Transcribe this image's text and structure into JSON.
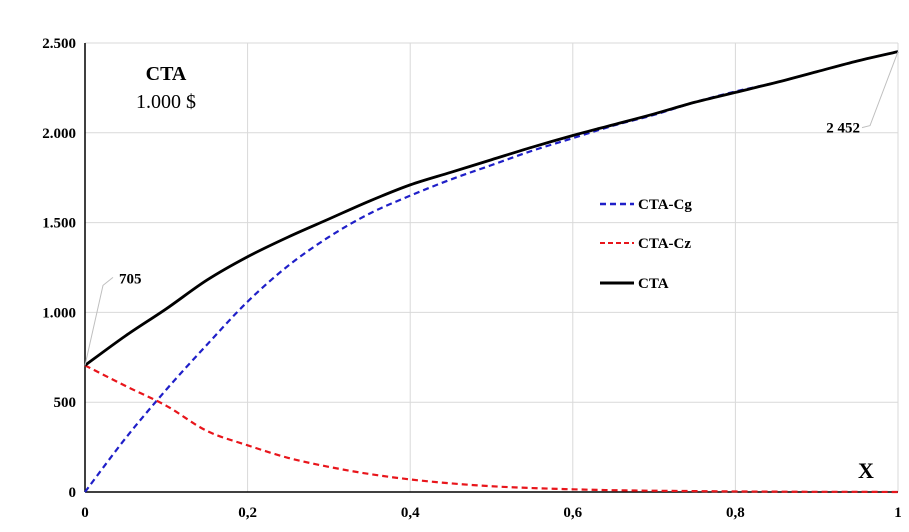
{
  "chart_data": {
    "type": "line",
    "title": "CTA",
    "subtitle": "1.000 $",
    "xlabel": "X",
    "ylabel": "",
    "xlim": [
      0,
      1
    ],
    "ylim": [
      0,
      2500
    ],
    "grid": true,
    "legend_position": "center-right",
    "x_ticks": [
      0,
      0.2,
      0.4,
      0.6,
      0.8,
      1
    ],
    "x_tick_labels": [
      "0",
      "0,2",
      "0,4",
      "0,6",
      "0,8",
      "1"
    ],
    "y_ticks": [
      0,
      500,
      1000,
      1500,
      2000,
      2500
    ],
    "y_tick_labels": [
      "0",
      "500",
      "1.000",
      "1.500",
      "2.000",
      "2.500"
    ],
    "x": [
      0,
      0.05,
      0.1,
      0.15,
      0.2,
      0.25,
      0.3,
      0.35,
      0.4,
      0.45,
      0.5,
      0.55,
      0.6,
      0.65,
      0.7,
      0.75,
      0.8,
      0.85,
      0.9,
      0.95,
      1
    ],
    "series": [
      {
        "name": "CTA-Cg",
        "color": "#1f1fc8",
        "style": "dashed",
        "values": [
          0,
          300,
          570,
          820,
          1060,
          1260,
          1420,
          1550,
          1650,
          1740,
          1820,
          1900,
          1970,
          2040,
          2100,
          2170,
          2230,
          2280,
          2340,
          2400,
          2452
        ]
      },
      {
        "name": "CTA-Cz",
        "color": "#e8151b",
        "style": "dashed",
        "values": [
          705,
          590,
          480,
          340,
          260,
          190,
          140,
          100,
          70,
          48,
          32,
          22,
          15,
          10,
          7,
          5,
          3,
          2,
          1,
          1,
          0
        ]
      },
      {
        "name": "CTA",
        "color": "#000000",
        "style": "solid",
        "values": [
          705,
          870,
          1020,
          1180,
          1310,
          1420,
          1520,
          1620,
          1710,
          1780,
          1850,
          1920,
          1985,
          2045,
          2105,
          2170,
          2225,
          2280,
          2340,
          2400,
          2452
        ]
      }
    ],
    "annotations": [
      {
        "label": "705",
        "x": 0,
        "y": 705
      },
      {
        "label": "2 452",
        "x": 1,
        "y": 2452
      }
    ]
  }
}
